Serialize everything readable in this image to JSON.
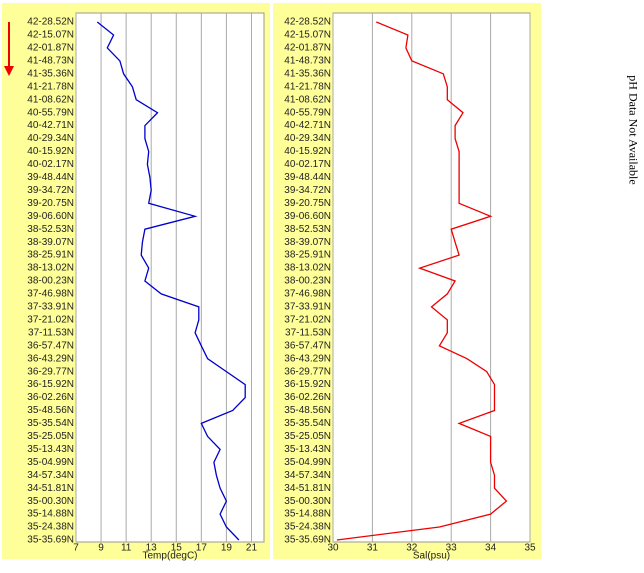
{
  "chart_data": [
    {
      "type": "line",
      "x_label": "Temp(degC)",
      "color": "#0000cc",
      "categories": [
        "42-28.52N",
        "42-15.07N",
        "42-01.87N",
        "41-48.73N",
        "41-35.36N",
        "41-21.78N",
        "41-08.62N",
        "40-55.79N",
        "40-42.71N",
        "40-29.34N",
        "40-15.92N",
        "40-02.17N",
        "39-48.44N",
        "39-34.72N",
        "39-20.75N",
        "39-06.60N",
        "38-52.53N",
        "38-39.07N",
        "38-25.91N",
        "38-13.02N",
        "38-00.23N",
        "37-46.98N",
        "37-33.91N",
        "37-21.02N",
        "37-11.53N",
        "36-57.47N",
        "36-43.29N",
        "36-29.77N",
        "36-15.92N",
        "36-02.26N",
        "35-48.56N",
        "35-35.54N",
        "35-25.05N",
        "35-13.43N",
        "35-04.99N",
        "34-57.34N",
        "34-51.81N",
        "35-00.30N",
        "35-14.88N",
        "35-24.38N",
        "35-35.69N"
      ],
      "values": [
        8.7,
        10.0,
        9.5,
        10.5,
        10.8,
        11.5,
        11.8,
        13.5,
        12.5,
        12.5,
        12.8,
        12.7,
        12.9,
        13.0,
        12.8,
        16.5,
        12.5,
        12.3,
        12.2,
        12.8,
        12.5,
        13.8,
        16.8,
        16.8,
        16.5,
        17.0,
        17.5,
        19.0,
        20.5,
        20.5,
        19.5,
        17.0,
        17.5,
        18.5,
        18.0,
        18.2,
        18.5,
        19.0,
        18.5,
        19.0,
        20.0
      ],
      "xlim": [
        7,
        22
      ],
      "xticks": [
        7,
        9,
        11,
        13,
        15,
        17,
        19,
        21
      ],
      "grid": true
    },
    {
      "type": "line",
      "x_label": "Sal(psu)",
      "color": "#ee0000",
      "categories": [
        "42-28.52N",
        "42-15.07N",
        "42-01.87N",
        "41-48.73N",
        "41-35.36N",
        "41-21.78N",
        "41-08.62N",
        "40-55.79N",
        "40-42.71N",
        "40-29.34N",
        "40-15.92N",
        "40-02.17N",
        "39-48.44N",
        "39-34.72N",
        "39-20.75N",
        "39-06.60N",
        "38-52.53N",
        "38-39.07N",
        "38-25.91N",
        "38-13.02N",
        "38-00.23N",
        "37-46.98N",
        "37-33.91N",
        "37-21.02N",
        "37-11.53N",
        "36-57.47N",
        "36-43.29N",
        "36-29.77N",
        "36-15.92N",
        "36-02.26N",
        "35-48.56N",
        "35-35.54N",
        "35-25.05N",
        "35-13.43N",
        "35-04.99N",
        "34-57.34N",
        "34-51.81N",
        "35-00.30N",
        "35-14.88N",
        "35-24.38N",
        "35-35.69N"
      ],
      "values": [
        31.1,
        31.9,
        31.85,
        32.0,
        32.8,
        32.9,
        32.9,
        33.3,
        33.1,
        33.1,
        33.2,
        33.2,
        33.2,
        33.2,
        33.2,
        34.0,
        33.0,
        33.1,
        33.2,
        32.2,
        33.1,
        32.9,
        32.5,
        32.9,
        32.9,
        32.7,
        33.4,
        33.9,
        34.1,
        34.1,
        34.1,
        33.2,
        34.0,
        34.0,
        34.0,
        34.1,
        34.1,
        34.4,
        34.0,
        32.7,
        30.1
      ],
      "xlim": [
        30,
        35
      ],
      "xticks": [
        30,
        31,
        32,
        33,
        34,
        35
      ],
      "grid": true
    }
  ],
  "side_note": "pH Data Not Available"
}
